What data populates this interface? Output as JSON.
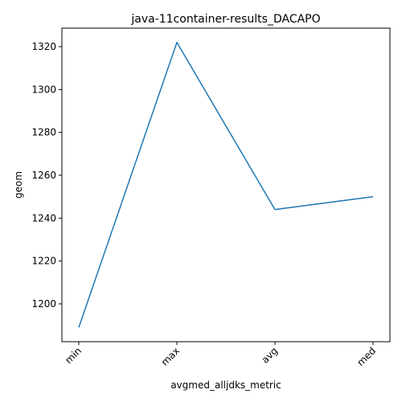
{
  "chart_data": {
    "type": "line",
    "title": "java-11container-results_DACAPO",
    "xlabel": "avgmed_alljdks_metric",
    "ylabel": "geom",
    "categories": [
      "min",
      "max",
      "avg",
      "med"
    ],
    "series": [
      {
        "values": [
          1189,
          1322,
          1244,
          1250
        ],
        "color": "#1f77b4"
      }
    ],
    "ylim": [
      1182.35,
      1328.65
    ],
    "yticks": [
      1200,
      1220,
      1240,
      1260,
      1280,
      1300,
      1320
    ],
    "grid": false,
    "legend": "none"
  }
}
